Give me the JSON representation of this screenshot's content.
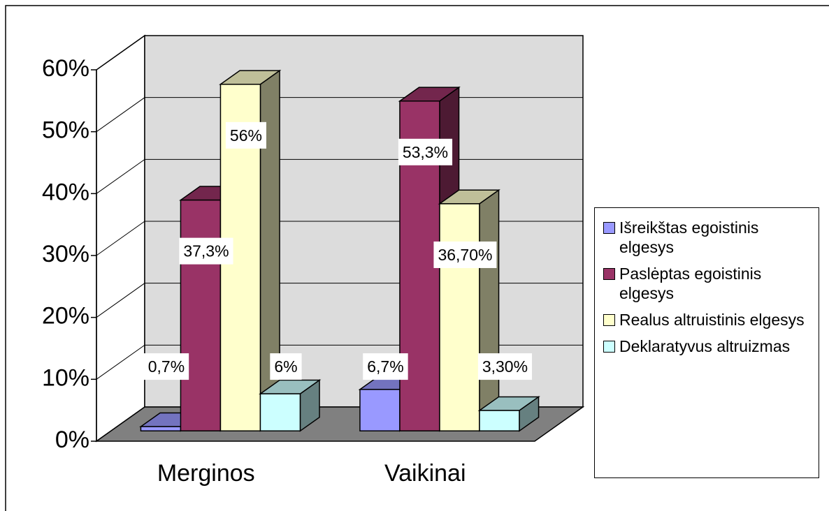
{
  "chart_data": {
    "type": "bar3d",
    "categories": [
      "Merginos",
      "Vaikinai"
    ],
    "series": [
      {
        "name": "Išreikštas egoistinis elgesys",
        "color": "#9999ff",
        "values": [
          0.7,
          6.7
        ],
        "value_labels": [
          "0,7%",
          "6,7%"
        ]
      },
      {
        "name": "Paslėptas egoistinis elgesys",
        "color": "#993366",
        "values": [
          37.3,
          53.3
        ],
        "value_labels": [
          "37,3%",
          "53,3%"
        ]
      },
      {
        "name": "Realus altruistinis elgesys",
        "color": "#ffffcc",
        "values": [
          56,
          36.7
        ],
        "value_labels": [
          "56%",
          "36,70%"
        ]
      },
      {
        "name": "Deklaratyvus altruizmas",
        "color": "#ccffff",
        "values": [
          6,
          3.3
        ],
        "value_labels": [
          "6%",
          "3,30%"
        ]
      }
    ],
    "ylim": [
      0,
      60
    ],
    "yticks": [
      {
        "value": 0,
        "label": "0%"
      },
      {
        "value": 10,
        "label": "10%"
      },
      {
        "value": 20,
        "label": "20%"
      },
      {
        "value": 30,
        "label": "30%"
      },
      {
        "value": 40,
        "label": "40%"
      },
      {
        "value": 50,
        "label": "50%"
      },
      {
        "value": 60,
        "label": "60%"
      }
    ],
    "grid": true,
    "legend": "right"
  }
}
